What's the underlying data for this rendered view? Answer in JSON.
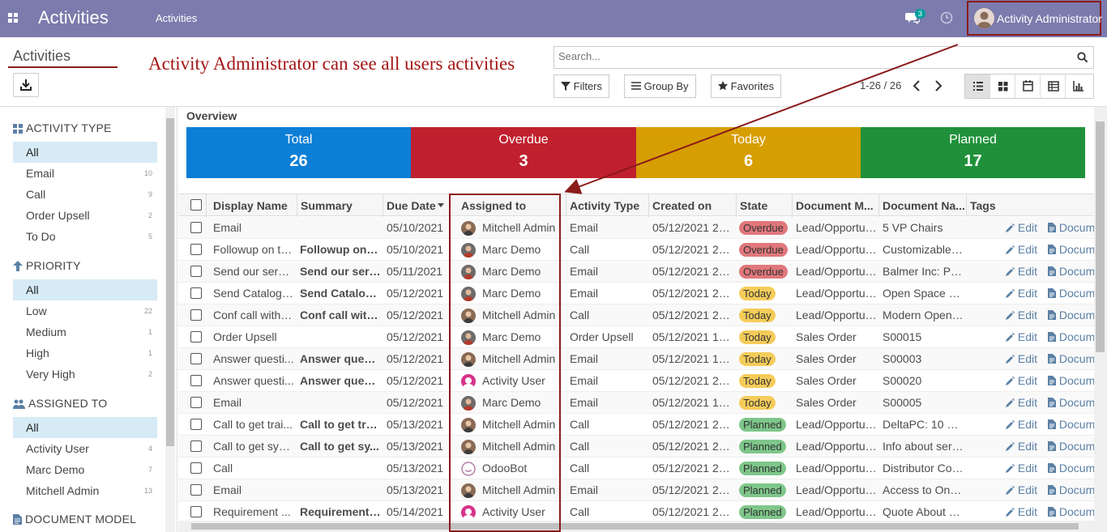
{
  "topbar": {
    "app_title": "Activities",
    "menu": "Activities",
    "chat_badge": "3",
    "user_name": "Activity Administrator"
  },
  "control": {
    "breadcrumb": "Activities",
    "annotation": "Activity Administrator can see all users activities",
    "search_placeholder": "Search...",
    "filters_label": "Filters",
    "groupby_label": "Group By",
    "favorites_label": "Favorites",
    "pager": "1-26 / 26",
    "views": [
      "list-view-icon",
      "kanban-view-icon",
      "calendar-view-icon",
      "pivot-view-icon",
      "graph-view-icon"
    ]
  },
  "sidebar": {
    "sections": [
      {
        "title": "ACTIVITY TYPE",
        "icon": "grid-icon",
        "items": [
          {
            "label": "All",
            "count": "",
            "active": true
          },
          {
            "label": "Email",
            "count": "10"
          },
          {
            "label": "Call",
            "count": "9"
          },
          {
            "label": "Order Upsell",
            "count": "2"
          },
          {
            "label": "To Do",
            "count": "5"
          }
        ]
      },
      {
        "title": "PRIORITY",
        "icon": "arrow-up-icon",
        "items": [
          {
            "label": "All",
            "count": "",
            "active": true
          },
          {
            "label": "Low",
            "count": "22"
          },
          {
            "label": "Medium",
            "count": "1"
          },
          {
            "label": "High",
            "count": "1"
          },
          {
            "label": "Very High",
            "count": "2"
          }
        ]
      },
      {
        "title": "ASSIGNED TO",
        "icon": "users-icon",
        "items": [
          {
            "label": "All",
            "count": "",
            "active": true
          },
          {
            "label": "Activity User",
            "count": "4"
          },
          {
            "label": "Marc Demo",
            "count": "7"
          },
          {
            "label": "Mitchell Admin",
            "count": "13"
          }
        ]
      },
      {
        "title": "DOCUMENT MODEL",
        "icon": "document-icon",
        "items": []
      }
    ]
  },
  "overview": {
    "title": "Overview",
    "cards": [
      {
        "label": "Total",
        "value": "26",
        "color": "#0c7ed6"
      },
      {
        "label": "Overdue",
        "value": "3",
        "color": "#c0202e"
      },
      {
        "label": "Today",
        "value": "6",
        "color": "#d69e00"
      },
      {
        "label": "Planned",
        "value": "17",
        "color": "#20913a"
      }
    ]
  },
  "table": {
    "columns": [
      "Display Name",
      "Summary",
      "Due Date",
      "Assigned to",
      "Activity Type",
      "Created on",
      "State",
      "Document M...",
      "Document Na...",
      "Tags"
    ],
    "edit_label": "Edit",
    "doc_label": "Docum",
    "rows": [
      {
        "name": "Email",
        "summary": "",
        "due": "05/10/2021",
        "assigned": "Mitchell Admin",
        "avatar": "mitchell",
        "type": "Email",
        "created": "05/12/2021 20:...",
        "state": "Overdue",
        "model": "Lead/Opportunity",
        "doc": "5 VP Chairs"
      },
      {
        "name": "Followup on th...",
        "summary": "Followup on t...",
        "due": "05/10/2021",
        "assigned": "Marc Demo",
        "avatar": "marc",
        "type": "Call",
        "created": "05/12/2021 20:...",
        "state": "Overdue",
        "model": "Lead/Opportunity",
        "doc": "Customizable ..."
      },
      {
        "name": "Send our servi...",
        "summary": "Send our serv...",
        "due": "05/11/2021",
        "assigned": "Marc Demo",
        "avatar": "marc",
        "type": "Email",
        "created": "05/12/2021 20:...",
        "state": "Overdue",
        "model": "Lead/Opportunity",
        "doc": "Balmer Inc: Po..."
      },
      {
        "name": "Send Catalog ...",
        "summary": "Send Catalog ...",
        "due": "05/12/2021",
        "assigned": "Marc Demo",
        "avatar": "marc",
        "type": "Email",
        "created": "05/12/2021 20:...",
        "state": "Today",
        "model": "Lead/Opportunity",
        "doc": "Open Space D..."
      },
      {
        "name": "Conf call with t...",
        "summary": "Conf call with...",
        "due": "05/12/2021",
        "assigned": "Mitchell Admin",
        "avatar": "mitchell",
        "type": "Call",
        "created": "05/12/2021 20:...",
        "state": "Today",
        "model": "Lead/Opportunity",
        "doc": "Modern Open ..."
      },
      {
        "name": "Order Upsell",
        "summary": "",
        "due": "05/12/2021",
        "assigned": "Marc Demo",
        "avatar": "marc",
        "type": "Order Upsell",
        "created": "05/12/2021 19:...",
        "state": "Today",
        "model": "Sales Order",
        "doc": "S00015"
      },
      {
        "name": "Answer questi...",
        "summary": "Answer quest...",
        "due": "05/12/2021",
        "assigned": "Mitchell Admin",
        "avatar": "mitchell",
        "type": "Email",
        "created": "05/12/2021 19:...",
        "state": "Today",
        "model": "Sales Order",
        "doc": "S00003"
      },
      {
        "name": "Answer questi...",
        "summary": "Answer quest...",
        "due": "05/12/2021",
        "assigned": "Activity User",
        "avatar": "user",
        "type": "Email",
        "created": "05/12/2021 20:...",
        "state": "Today",
        "model": "Sales Order",
        "doc": "S00020"
      },
      {
        "name": "Email",
        "summary": "",
        "due": "05/12/2021",
        "assigned": "Marc Demo",
        "avatar": "marc",
        "type": "Email",
        "created": "05/12/2021 19:...",
        "state": "Today",
        "model": "Sales Order",
        "doc": "S00005"
      },
      {
        "name": "Call to get trai...",
        "summary": "Call to get trai...",
        "due": "05/13/2021",
        "assigned": "Mitchell Admin",
        "avatar": "mitchell",
        "type": "Call",
        "created": "05/12/2021 20:...",
        "state": "Planned",
        "model": "Lead/Opportunity",
        "doc": "DeltaPC: 10 C..."
      },
      {
        "name": "Call to get syst...",
        "summary": "Call to get sy...",
        "due": "05/13/2021",
        "assigned": "Mitchell Admin",
        "avatar": "mitchell",
        "type": "Call",
        "created": "05/12/2021 20:...",
        "state": "Planned",
        "model": "Lead/Opportunity",
        "doc": "Info about serv..."
      },
      {
        "name": "Call",
        "summary": "",
        "due": "05/13/2021",
        "assigned": "OdooBot",
        "avatar": "bot",
        "type": "Call",
        "created": "05/12/2021 20:...",
        "state": "Planned",
        "model": "Lead/Opportunity",
        "doc": "Distributor Con..."
      },
      {
        "name": "Email",
        "summary": "",
        "due": "05/13/2021",
        "assigned": "Mitchell Admin",
        "avatar": "mitchell",
        "type": "Email",
        "created": "05/12/2021 20:...",
        "state": "Planned",
        "model": "Lead/Opportunity",
        "doc": "Access to Onli..."
      },
      {
        "name": "Requirement ...",
        "summary": "Requirement ...",
        "due": "05/14/2021",
        "assigned": "Activity User",
        "avatar": "user",
        "type": "Call",
        "created": "05/12/2021 20:...",
        "state": "Planned",
        "model": "Lead/Opportunity",
        "doc": "Quote About M..."
      }
    ]
  }
}
